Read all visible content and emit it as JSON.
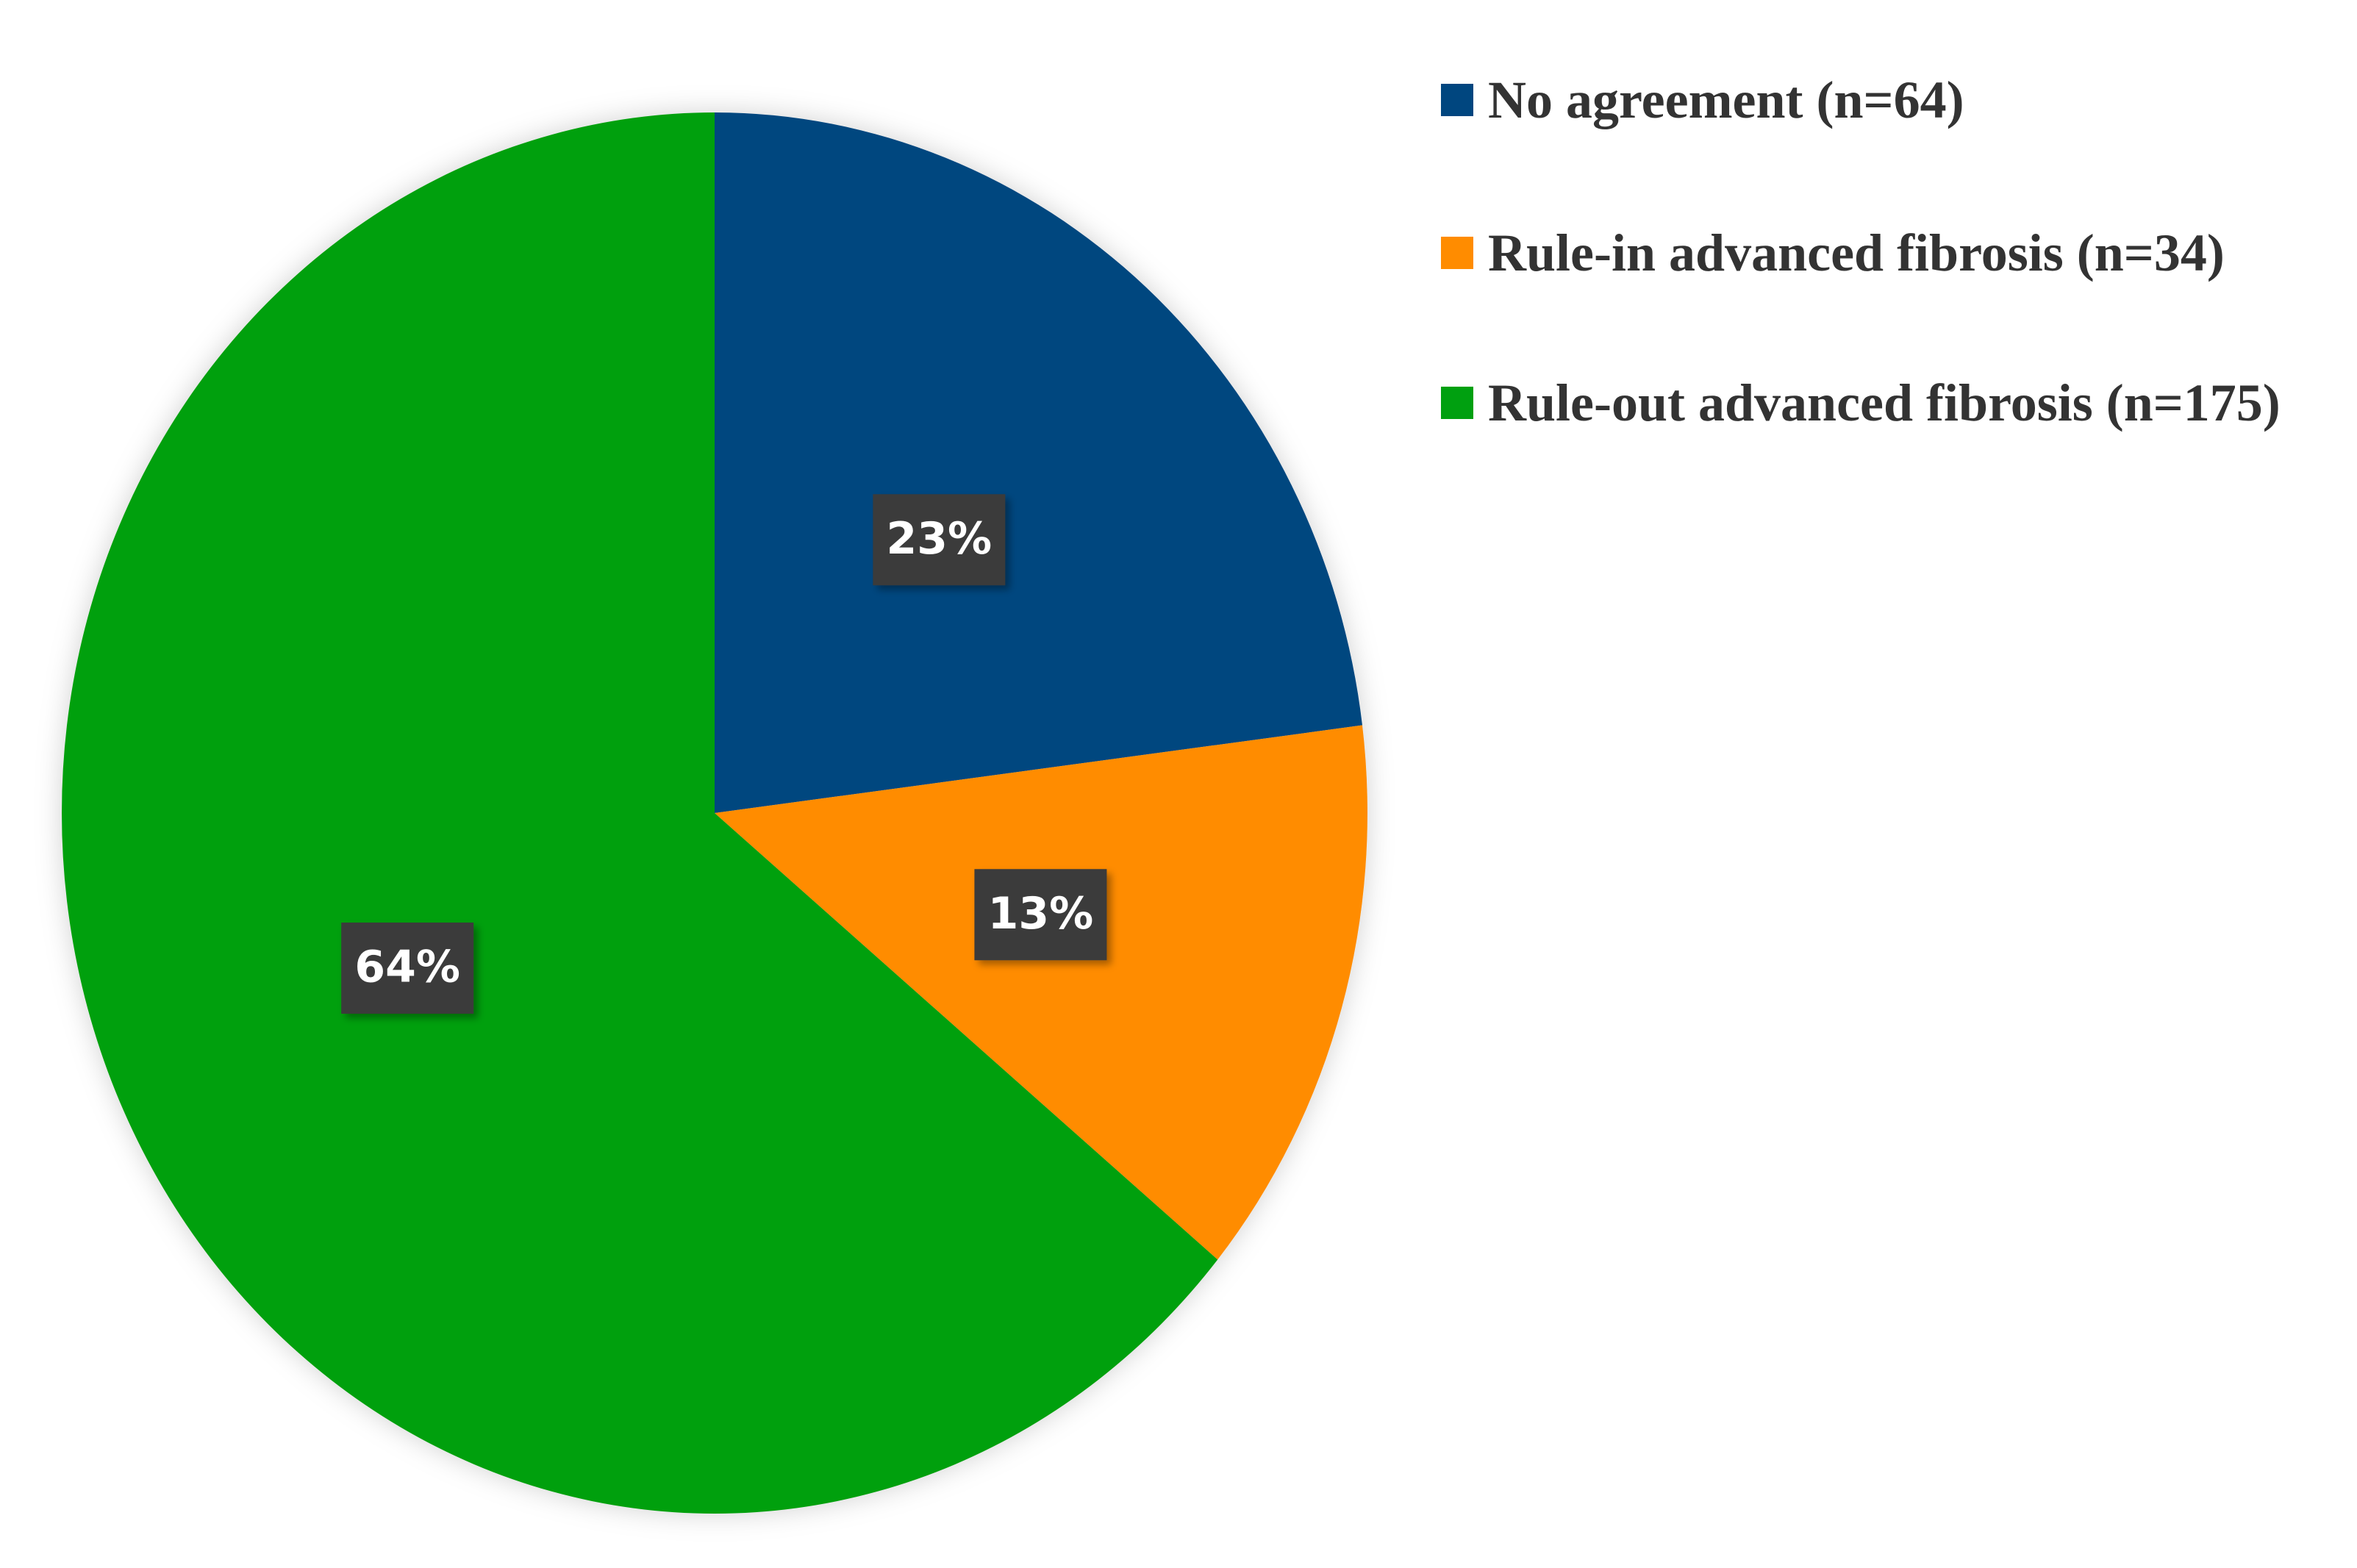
{
  "chart_data": {
    "type": "pie",
    "categories": [
      "No agreement (n=64)",
      "Rule-in advanced fibrosis (n=34)",
      "Rule-out advanced fibrosis (n=175)"
    ],
    "values": [
      23,
      13,
      64
    ],
    "value_labels": [
      "23%",
      "13%",
      "64%"
    ],
    "colors": [
      "#00467f",
      "#ff8c00",
      "#00a010"
    ],
    "legend": "right"
  }
}
